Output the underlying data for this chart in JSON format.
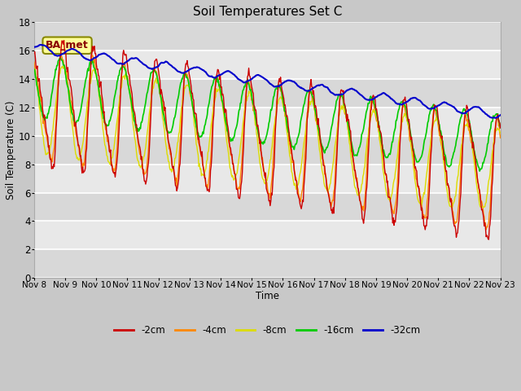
{
  "title": "Soil Temperatures Set C",
  "xlabel": "Time",
  "ylabel": "Soil Temperature (C)",
  "ylim": [
    0,
    18
  ],
  "tick_labels": [
    "Nov 8",
    "Nov 9",
    "Nov 10",
    "Nov 11",
    "Nov 12",
    "Nov 13",
    "Nov 14",
    "Nov 15",
    "Nov 16",
    "Nov 17",
    "Nov 18",
    "Nov 19",
    "Nov 20",
    "Nov 21",
    "Nov 22",
    "Nov 23"
  ],
  "legend_labels": [
    "-2cm",
    "-4cm",
    "-8cm",
    "-16cm",
    "-32cm"
  ],
  "colors": {
    "-2cm": "#cc0000",
    "-4cm": "#ff8800",
    "-8cm": "#dddd00",
    "-16cm": "#00cc00",
    "-32cm": "#0000cc"
  },
  "annotation_text": "BA_met",
  "annotation_bg": "#ffff99",
  "annotation_border": "#888800",
  "fig_bg": "#c8c8c8",
  "plot_bg": "#e8e8e8",
  "grid_color": "#ffffff",
  "n_days": 15,
  "n_points_per_day": 48
}
